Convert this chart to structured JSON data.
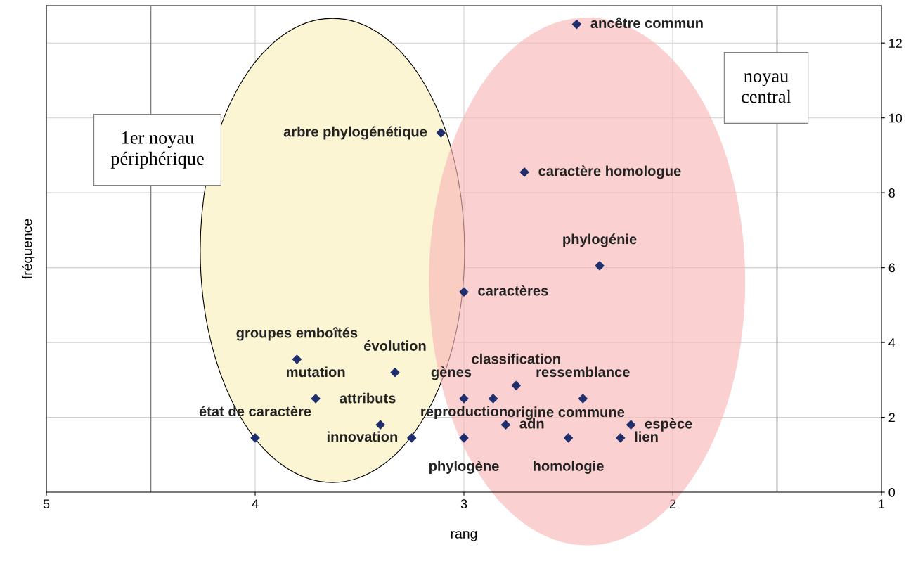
{
  "chart_data": {
    "type": "scatter",
    "xlabel": "rang",
    "ylabel": "fréquence",
    "xlim": [
      5,
      1
    ],
    "ylim": [
      0,
      13
    ],
    "xticks": [
      5,
      4,
      3,
      2,
      1
    ],
    "yticks": [
      0,
      2,
      4,
      6,
      8,
      10,
      12
    ],
    "grid": true,
    "marker": "diamond",
    "series": [
      {
        "color": "#1f2f6e",
        "x": [
          2.46,
          3.11,
          2.71,
          2.35,
          3.0,
          3.8,
          3.33,
          2.75,
          3.71,
          3.0,
          2.86,
          2.43,
          3.4,
          2.8,
          2.2,
          4.0,
          3.25,
          3.0,
          2.5,
          2.25
        ],
        "values": [
          12.5,
          9.6,
          8.55,
          6.05,
          5.35,
          3.55,
          3.2,
          2.85,
          2.5,
          2.5,
          2.5,
          2.5,
          1.8,
          1.8,
          1.8,
          1.45,
          1.45,
          1.45,
          1.45,
          1.45
        ]
      }
    ],
    "annotations": [
      {
        "text": "ancêtre commun",
        "x": 2.46,
        "y": 12.5
      },
      {
        "text": "arbre phylogénétique",
        "x": 3.11,
        "y": 9.6
      },
      {
        "text": "caractère homologue",
        "x": 2.71,
        "y": 8.55
      },
      {
        "text": "phylogénie",
        "x": 2.35,
        "y": 6.05
      },
      {
        "text": "caractères",
        "x": 3.0,
        "y": 5.35
      },
      {
        "text": "groupes emboîtés",
        "x": 3.8,
        "y": 3.55
      },
      {
        "text": "évolution",
        "x": 3.33,
        "y": 3.2
      },
      {
        "text": "classification",
        "x": 2.75,
        "y": 2.85
      },
      {
        "text": "mutation",
        "x": 3.71,
        "y": 2.5
      },
      {
        "text": "gènes",
        "x": 3.0,
        "y": 2.5
      },
      {
        "text": "origine commune",
        "x": 2.86,
        "y": 2.5
      },
      {
        "text": "ressemblance",
        "x": 2.43,
        "y": 2.5
      },
      {
        "text": "attributs",
        "x": 3.4,
        "y": 1.8
      },
      {
        "text": "adn",
        "x": 2.8,
        "y": 1.8
      },
      {
        "text": "espèce",
        "x": 2.2,
        "y": 1.8
      },
      {
        "text": "état de caractère",
        "x": 4.0,
        "y": 1.45
      },
      {
        "text": "innovation",
        "x": 3.25,
        "y": 1.45
      },
      {
        "text": "reproduction",
        "x": 3.0,
        "y": 1.45
      },
      {
        "text": "phylogène",
        "x": 3.0,
        "y": 1.45
      },
      {
        "text": "homologie",
        "x": 2.5,
        "y": 1.45
      },
      {
        "text": "lien",
        "x": 2.25,
        "y": 1.45
      },
      "1er noyau\npériphérique",
      "noyau\ncentral"
    ],
    "ref_lines": [
      {
        "axis": "x",
        "value": 4.5,
        "color": "#808080"
      },
      {
        "axis": "x",
        "value": 1.5,
        "color": "#808080"
      }
    ]
  }
}
